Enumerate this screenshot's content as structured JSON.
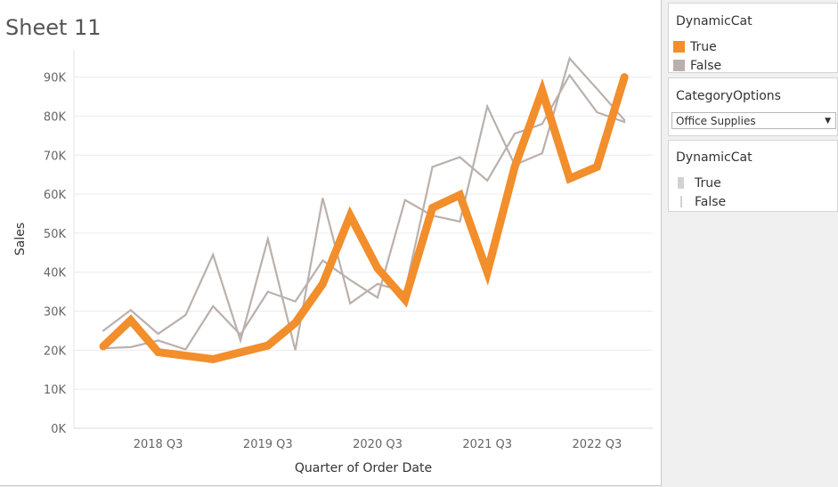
{
  "sheet": {
    "title": "Sheet 11"
  },
  "legend_color": {
    "title": "DynamicCat",
    "items": [
      {
        "label": "True",
        "color": "#f28e2b"
      },
      {
        "label": "False",
        "color": "#bab0ac"
      }
    ]
  },
  "category_filter": {
    "title": "CategoryOptions",
    "selected": "Office Supplies"
  },
  "legend_size": {
    "title": "DynamicCat",
    "items": [
      {
        "label": "True"
      },
      {
        "label": "False"
      }
    ]
  },
  "chart_data": {
    "type": "line",
    "title": "Sheet 11",
    "xlabel": "Quarter of Order Date",
    "ylabel": "Sales",
    "ylim": [
      0,
      97000
    ],
    "y_ticks": [
      0,
      10000,
      20000,
      30000,
      40000,
      50000,
      60000,
      70000,
      80000,
      90000
    ],
    "y_tick_labels": [
      "0K",
      "10K",
      "20K",
      "30K",
      "40K",
      "50K",
      "60K",
      "70K",
      "80K",
      "90K"
    ],
    "x": [
      "2018 Q1",
      "2018 Q2",
      "2018 Q3",
      "2018 Q4",
      "2019 Q1",
      "2019 Q2",
      "2019 Q3",
      "2019 Q4",
      "2020 Q1",
      "2020 Q2",
      "2020 Q3",
      "2020 Q4",
      "2021 Q1",
      "2021 Q2",
      "2021 Q3",
      "2021 Q4",
      "2022 Q1",
      "2022 Q2",
      "2022 Q3",
      "2022 Q4"
    ],
    "x_tick_labels": [
      "2018 Q3",
      "2019 Q3",
      "2020 Q3",
      "2021 Q3",
      "2022 Q3"
    ],
    "x_tick_positions": [
      "2018 Q3",
      "2019 Q3",
      "2020 Q3",
      "2021 Q3",
      "2022 Q3"
    ],
    "grid": true,
    "series": [
      {
        "name": "True",
        "color": "#f28e2b",
        "values": [
          21000,
          27700,
          19500,
          null,
          17700,
          null,
          21200,
          27000,
          37000,
          54500,
          41000,
          33000,
          56500,
          59800,
          40000,
          67000,
          86500,
          64000,
          67000,
          90000
        ]
      },
      {
        "name": "False",
        "color": "#bab0ac",
        "values": [
          20500,
          20800,
          22500,
          20200,
          31300,
          24000,
          35000,
          32500,
          43000,
          38000,
          33500,
          58500,
          54500,
          53000,
          82500,
          67500,
          70500,
          94800,
          87000,
          79000
        ]
      },
      {
        "name": "False",
        "color": "#bab0ac",
        "values": [
          25000,
          30300,
          24200,
          29000,
          44500,
          22500,
          48500,
          20000,
          59000,
          32000,
          37000,
          35000,
          67000,
          69500,
          63500,
          75500,
          78000,
          90500,
          81000,
          78500
        ]
      }
    ]
  }
}
